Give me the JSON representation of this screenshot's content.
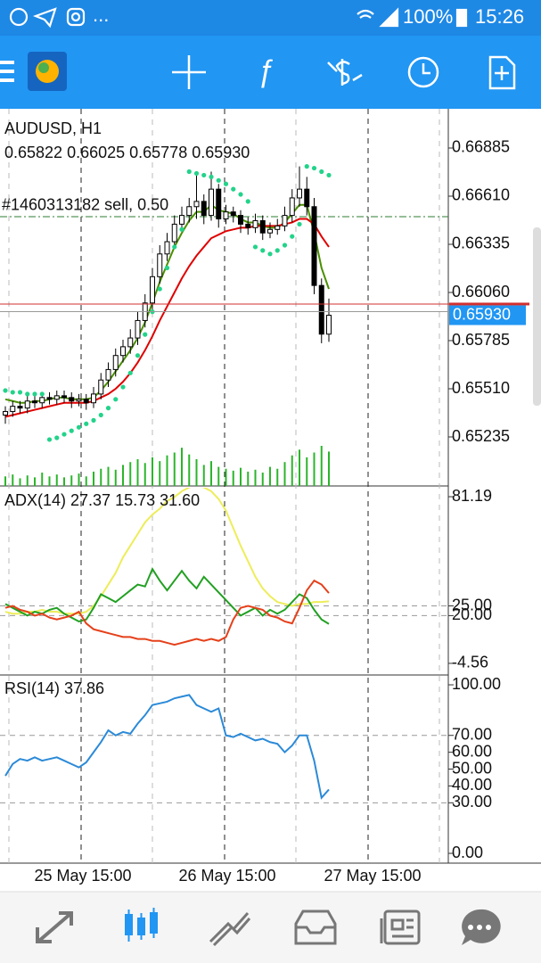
{
  "status_bar": {
    "left": "...",
    "battery": "100%",
    "time": "15:26"
  },
  "time_axis": {
    "labels": [
      "25 May 15:00",
      "26 May 15:00",
      "27 May 15:00"
    ]
  },
  "chart_data": [
    {
      "type": "candlestick",
      "title": "AUDUSD, H1",
      "subtitle": "0.65822 0.66025 0.65778 0.65930",
      "up_color": "#ffffff",
      "down_color": "#000000",
      "ylim": [
        0.64955,
        0.67109
      ],
      "yticks": [
        0.66885,
        {
          "value": 0.6661,
          "label": "0.66610"
        },
        0.66335,
        {
          "value": 0.6606,
          "label": "0.66060"
        },
        0.65785,
        {
          "value": 0.6551,
          "label": "0.65510"
        },
        0.65235
      ],
      "bid": {
        "value": 0.6593,
        "label": "0.65930",
        "color": "#2196f3"
      },
      "ask_line": {
        "value": 0.65994,
        "color": "#d32f2f"
      },
      "annotations": [
        {
          "text": "#1460313182 sell, 0.50",
          "value": 0.66493,
          "color": "#2e7d32"
        }
      ],
      "ohlc": [
        [
          0.6536,
          0.6541,
          0.6531,
          0.6538
        ],
        [
          0.6538,
          0.6544,
          0.6535,
          0.6541
        ],
        [
          0.6541,
          0.6544,
          0.6537,
          0.654
        ],
        [
          0.654,
          0.6547,
          0.6537,
          0.6544
        ],
        [
          0.6544,
          0.6547,
          0.654,
          0.6543
        ],
        [
          0.6543,
          0.6549,
          0.654,
          0.6546
        ],
        [
          0.6546,
          0.6549,
          0.6542,
          0.6545
        ],
        [
          0.6545,
          0.655,
          0.6542,
          0.6547
        ],
        [
          0.6547,
          0.655,
          0.6543,
          0.6546
        ],
        [
          0.6546,
          0.6549,
          0.654,
          0.6544
        ],
        [
          0.6544,
          0.6548,
          0.6541,
          0.6545
        ],
        [
          0.6545,
          0.6548,
          0.6539,
          0.6543
        ],
        [
          0.6543,
          0.6552,
          0.654,
          0.6548
        ],
        [
          0.6548,
          0.656,
          0.6545,
          0.6556
        ],
        [
          0.6556,
          0.6566,
          0.6552,
          0.6562
        ],
        [
          0.6562,
          0.6574,
          0.6558,
          0.657
        ],
        [
          0.657,
          0.6579,
          0.6566,
          0.6575
        ],
        [
          0.6575,
          0.6585,
          0.6571,
          0.658
        ],
        [
          0.658,
          0.6595,
          0.6576,
          0.659
        ],
        [
          0.659,
          0.6605,
          0.6586,
          0.66
        ],
        [
          0.66,
          0.662,
          0.6596,
          0.6615
        ],
        [
          0.6615,
          0.6633,
          0.6611,
          0.6628
        ],
        [
          0.6628,
          0.664,
          0.6624,
          0.6635
        ],
        [
          0.6635,
          0.665,
          0.6631,
          0.6645
        ],
        [
          0.6645,
          0.6655,
          0.6641,
          0.665
        ],
        [
          0.665,
          0.666,
          0.6646,
          0.6655
        ],
        [
          0.6655,
          0.6675,
          0.6648,
          0.6658
        ],
        [
          0.6658,
          0.6662,
          0.6645,
          0.665
        ],
        [
          0.665,
          0.6675,
          0.6647,
          0.6665
        ],
        [
          0.6665,
          0.6668,
          0.6643,
          0.6648
        ],
        [
          0.6648,
          0.6656,
          0.6645,
          0.6652
        ],
        [
          0.6652,
          0.6655,
          0.6646,
          0.665
        ],
        [
          0.665,
          0.6653,
          0.664,
          0.6645
        ],
        [
          0.6645,
          0.6649,
          0.6639,
          0.6643
        ],
        [
          0.6643,
          0.6651,
          0.664,
          0.6647
        ],
        [
          0.6647,
          0.665,
          0.6636,
          0.664
        ],
        [
          0.664,
          0.6646,
          0.6637,
          0.6642
        ],
        [
          0.6642,
          0.6648,
          0.6639,
          0.6644
        ],
        [
          0.6644,
          0.6655,
          0.6641,
          0.665
        ],
        [
          0.665,
          0.6665,
          0.6646,
          0.666
        ],
        [
          0.666,
          0.6678,
          0.6655,
          0.6665
        ],
        [
          0.6665,
          0.6672,
          0.665,
          0.6655
        ],
        [
          0.6655,
          0.666,
          0.6605,
          0.661
        ],
        [
          0.661,
          0.6614,
          0.6577,
          0.65822
        ],
        [
          0.65822,
          0.66025,
          0.65778,
          0.6593
        ]
      ],
      "series": [
        {
          "color": "#4a8f00",
          "values": [
            0.6545,
            0.6544,
            0.6543,
            0.6543,
            0.6544,
            0.6544,
            0.6545,
            0.6546,
            0.6546,
            0.6545,
            0.6545,
            0.6545,
            0.6546,
            0.655,
            0.6555,
            0.6561,
            0.6567,
            0.6573,
            0.658,
            0.6589,
            0.66,
            0.6612,
            0.6622,
            0.6632,
            0.664,
            0.6647,
            0.6652,
            0.6652,
            0.6656,
            0.6653,
            0.6652,
            0.6651,
            0.6648,
            0.6646,
            0.6646,
            0.6644,
            0.6643,
            0.6643,
            0.6646,
            0.6651,
            0.6656,
            0.6656,
            0.664,
            0.662,
            0.6608
          ]
        },
        {
          "color": "#e00000",
          "values": [
            0.6535,
            0.6536,
            0.6537,
            0.6538,
            0.6539,
            0.654,
            0.6541,
            0.6542,
            0.6543,
            0.6543,
            0.6543,
            0.6543,
            0.6544,
            0.6546,
            0.6548,
            0.6551,
            0.6555,
            0.656,
            0.6566,
            0.6573,
            0.6581,
            0.659,
            0.6598,
            0.6606,
            0.6614,
            0.6621,
            0.6627,
            0.6632,
            0.6637,
            0.6639,
            0.6641,
            0.6642,
            0.6643,
            0.6643,
            0.6644,
            0.6644,
            0.6644,
            0.6644,
            0.6645,
            0.6646,
            0.6648,
            0.6648,
            0.6645,
            0.6638,
            0.6632
          ]
        }
      ],
      "sar": {
        "color": "#22d38a",
        "values": [
          0.655,
          0.6549,
          0.6549,
          0.6548,
          0.6548,
          0.6548,
          0.6522,
          0.6523,
          0.6525,
          0.6527,
          0.6529,
          0.6531,
          0.6533,
          0.6536,
          0.654,
          0.6545,
          0.6552,
          0.656,
          0.657,
          0.6582,
          0.6595,
          0.6608,
          0.662,
          0.6632,
          0.6642,
          0.6675,
          0.6674,
          0.6673,
          0.6672,
          0.667,
          0.6668,
          0.6665,
          0.6662,
          0.6658,
          0.6632,
          0.663,
          0.6628,
          0.663,
          0.6633,
          0.6638,
          0.6645,
          0.6678,
          0.6677,
          0.6675,
          0.6673
        ]
      },
      "volume": {
        "color": "#2bb52b",
        "values": [
          10,
          12,
          8,
          11,
          9,
          14,
          10,
          12,
          9,
          11,
          13,
          10,
          15,
          18,
          20,
          17,
          22,
          25,
          28,
          24,
          30,
          26,
          32,
          35,
          40,
          33,
          28,
          22,
          26,
          20,
          18,
          16,
          19,
          15,
          17,
          14,
          20,
          18,
          25,
          32,
          38,
          30,
          35,
          42,
          36
        ]
      }
    },
    {
      "type": "line",
      "title": "ADX(14) 27.37 15.73 31.60",
      "ylim": [
        -10.09,
        85.8
      ],
      "yticks": [
        81.19,
        {
          "value": 25,
          "label": "25.00"
        },
        {
          "value": 20,
          "label": "20.00"
        },
        -4.56
      ],
      "levels": [
        25,
        20
      ],
      "series": [
        {
          "color": "#eded5a",
          "values": [
            22,
            21,
            21,
            22,
            22,
            23,
            22,
            22,
            21,
            21,
            21,
            22,
            25,
            30,
            36,
            42,
            50,
            56,
            62,
            68,
            72,
            75,
            79,
            81,
            84,
            86,
            87,
            86,
            84,
            80,
            74,
            65,
            56,
            48,
            40,
            34,
            30,
            27,
            26,
            25,
            26,
            26,
            27,
            27,
            27.37
          ]
        },
        {
          "color": "#22a022",
          "values": [
            26,
            24,
            22,
            20,
            22,
            21,
            23,
            24,
            21,
            19,
            17,
            18,
            24,
            31,
            29,
            27,
            30,
            33,
            36,
            35,
            44,
            38,
            33,
            38,
            43,
            38,
            34,
            40,
            36,
            32,
            28,
            24,
            20,
            22,
            24,
            20,
            23,
            21,
            23,
            27,
            31,
            29,
            23,
            18,
            15.73
          ]
        },
        {
          "color": "#e5401a",
          "values": [
            24,
            25,
            23,
            22,
            20,
            21,
            19,
            18,
            19,
            20,
            22,
            16,
            13,
            12,
            11,
            10,
            9,
            9,
            8,
            8,
            7,
            7,
            6,
            5,
            6,
            7,
            8,
            7,
            8,
            7,
            9,
            18,
            24,
            25,
            24,
            23,
            20,
            19,
            17,
            16,
            24,
            33,
            38,
            36,
            31.6
          ]
        }
      ]
    },
    {
      "type": "line",
      "title": "RSI(14) 37.86",
      "ylim": [
        -5.8,
        105.3
      ],
      "yticks": [
        {
          "value": 100,
          "label": "100.00"
        },
        {
          "value": 70,
          "label": "70.00"
        },
        {
          "value": 60,
          "label": "60.00"
        },
        {
          "value": 50,
          "label": "50.00"
        },
        {
          "value": 40,
          "label": "40.00"
        },
        {
          "value": 30,
          "label": "30.00"
        },
        {
          "value": 0,
          "label": "0.00"
        }
      ],
      "levels": [
        70,
        30
      ],
      "series": [
        {
          "color": "#2b8ad8",
          "values": [
            46,
            53,
            56,
            55,
            57,
            55,
            56,
            57,
            55,
            53,
            51,
            54,
            60,
            66,
            73,
            70,
            72,
            71,
            77,
            82,
            88,
            89,
            90,
            92,
            93,
            94,
            88,
            86,
            84,
            86,
            70,
            69,
            71,
            69,
            67,
            68,
            66,
            65,
            60,
            64,
            70,
            70,
            55,
            33,
            37.86
          ]
        }
      ]
    }
  ]
}
